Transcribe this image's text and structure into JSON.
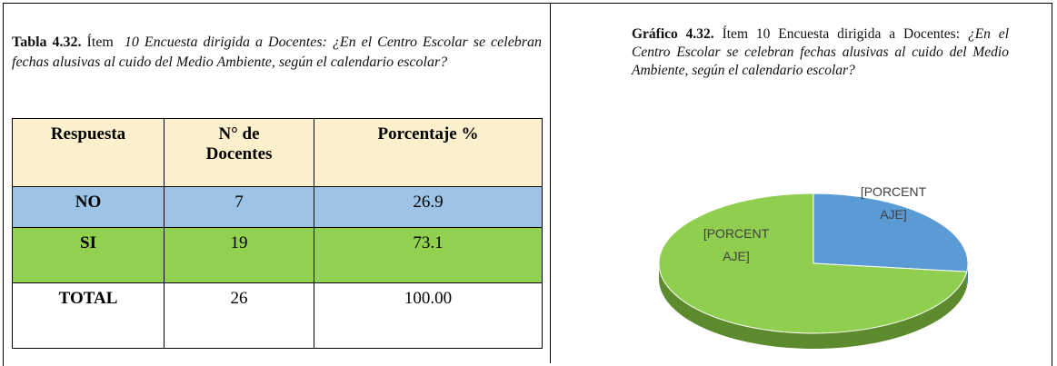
{
  "table_caption": {
    "label": "Tabla 4.32.",
    "item": "Ítem",
    "text": "10 Encuesta dirigida a Docentes: ¿En el Centro Escolar se celebran fechas alusivas al cuido del Medio Ambiente, según el calendario escolar?"
  },
  "table": {
    "header": [
      "Respuesta",
      "N° de Docentes",
      "Porcentaje %"
    ],
    "rows": [
      [
        "NO",
        7,
        26.9
      ],
      [
        "SI",
        19,
        73.1
      ],
      [
        "TOTAL",
        26,
        "100.00"
      ]
    ],
    "row_colors": [
      "#9dc3e6",
      "#92d050",
      "#ffffff"
    ],
    "header_color": "#fdf0cc"
  },
  "chart_caption": {
    "label": "Gráfico 4.32.",
    "item": "Ítem 10 Encuesta dirigida a Docentes:",
    "text": "¿En el Centro Escolar se celebran fechas alusivas al cuido del Medio Ambiente, según el calendario escolar?"
  },
  "chart": {
    "type": "pie",
    "colors": [
      "#5b9bd5",
      "#8fce4f"
    ],
    "side_colors": [
      "#3f78ad",
      "#5c8a2c"
    ],
    "labels": [
      [
        "[PORCENT",
        "AJE]"
      ],
      [
        "[PORCENT",
        "AJE]"
      ]
    ]
  }
}
